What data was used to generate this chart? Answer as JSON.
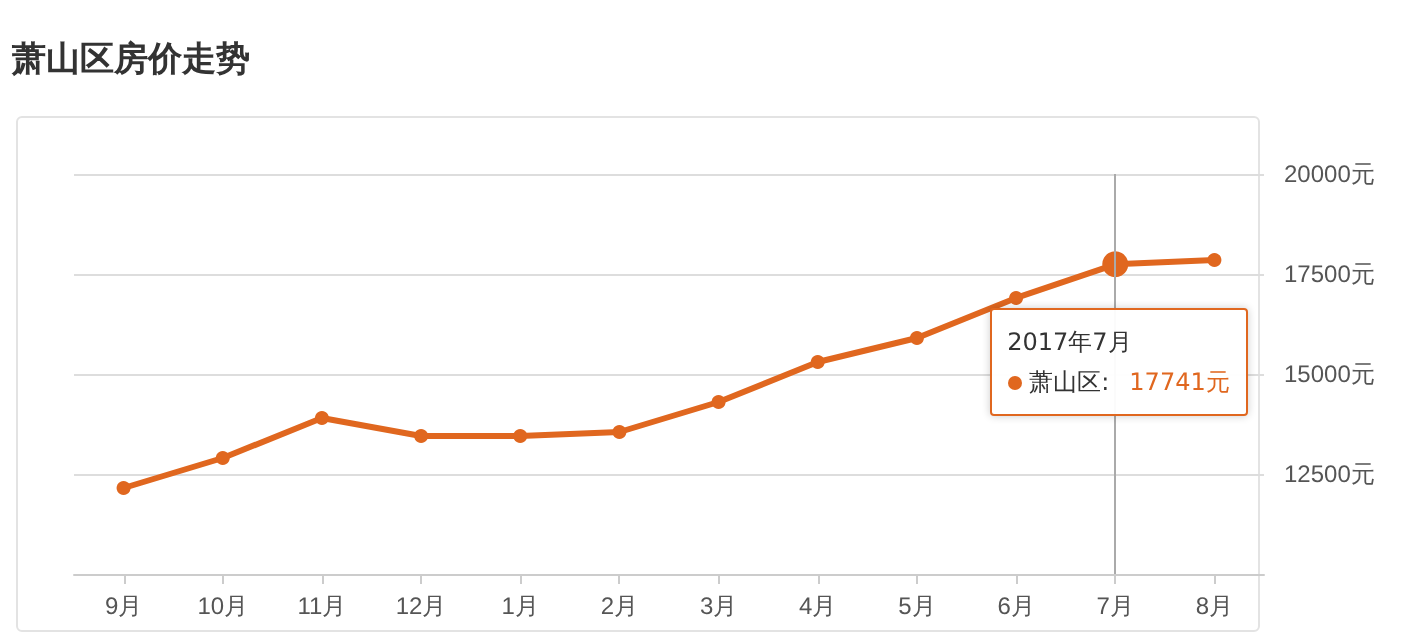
{
  "chart_data": {
    "type": "line",
    "title": "萧山区房价走势",
    "categories": [
      "9月",
      "10月",
      "11月",
      "12月",
      "1月",
      "2月",
      "3月",
      "4月",
      "5月",
      "6月",
      "7月",
      "8月"
    ],
    "series": [
      {
        "name": "萧山区:",
        "color": "#e0671f",
        "values": [
          12150,
          12900,
          13900,
          13450,
          13450,
          13550,
          14300,
          15300,
          15900,
          16900,
          17741,
          17850
        ]
      }
    ],
    "annotations": [
      {
        "text": "2017年7月",
        "x": "7月",
        "y": 17741
      },
      "17741元"
    ],
    "ref_lines": [
      {
        "axis": "x",
        "value": "7月",
        "color": "#aaaaaa"
      }
    ],
    "ylim": [
      10000,
      20000
    ],
    "yticks": [
      {
        "value": 10000,
        "label": null
      },
      {
        "value": 12500,
        "label": "12500元"
      },
      {
        "value": 15000,
        "label": "15000元"
      },
      {
        "value": 17500,
        "label": "17500元"
      },
      {
        "value": 20000,
        "label": "20000元"
      }
    ],
    "grid": "y",
    "marker": "circle",
    "line_style": "solid"
  }
}
